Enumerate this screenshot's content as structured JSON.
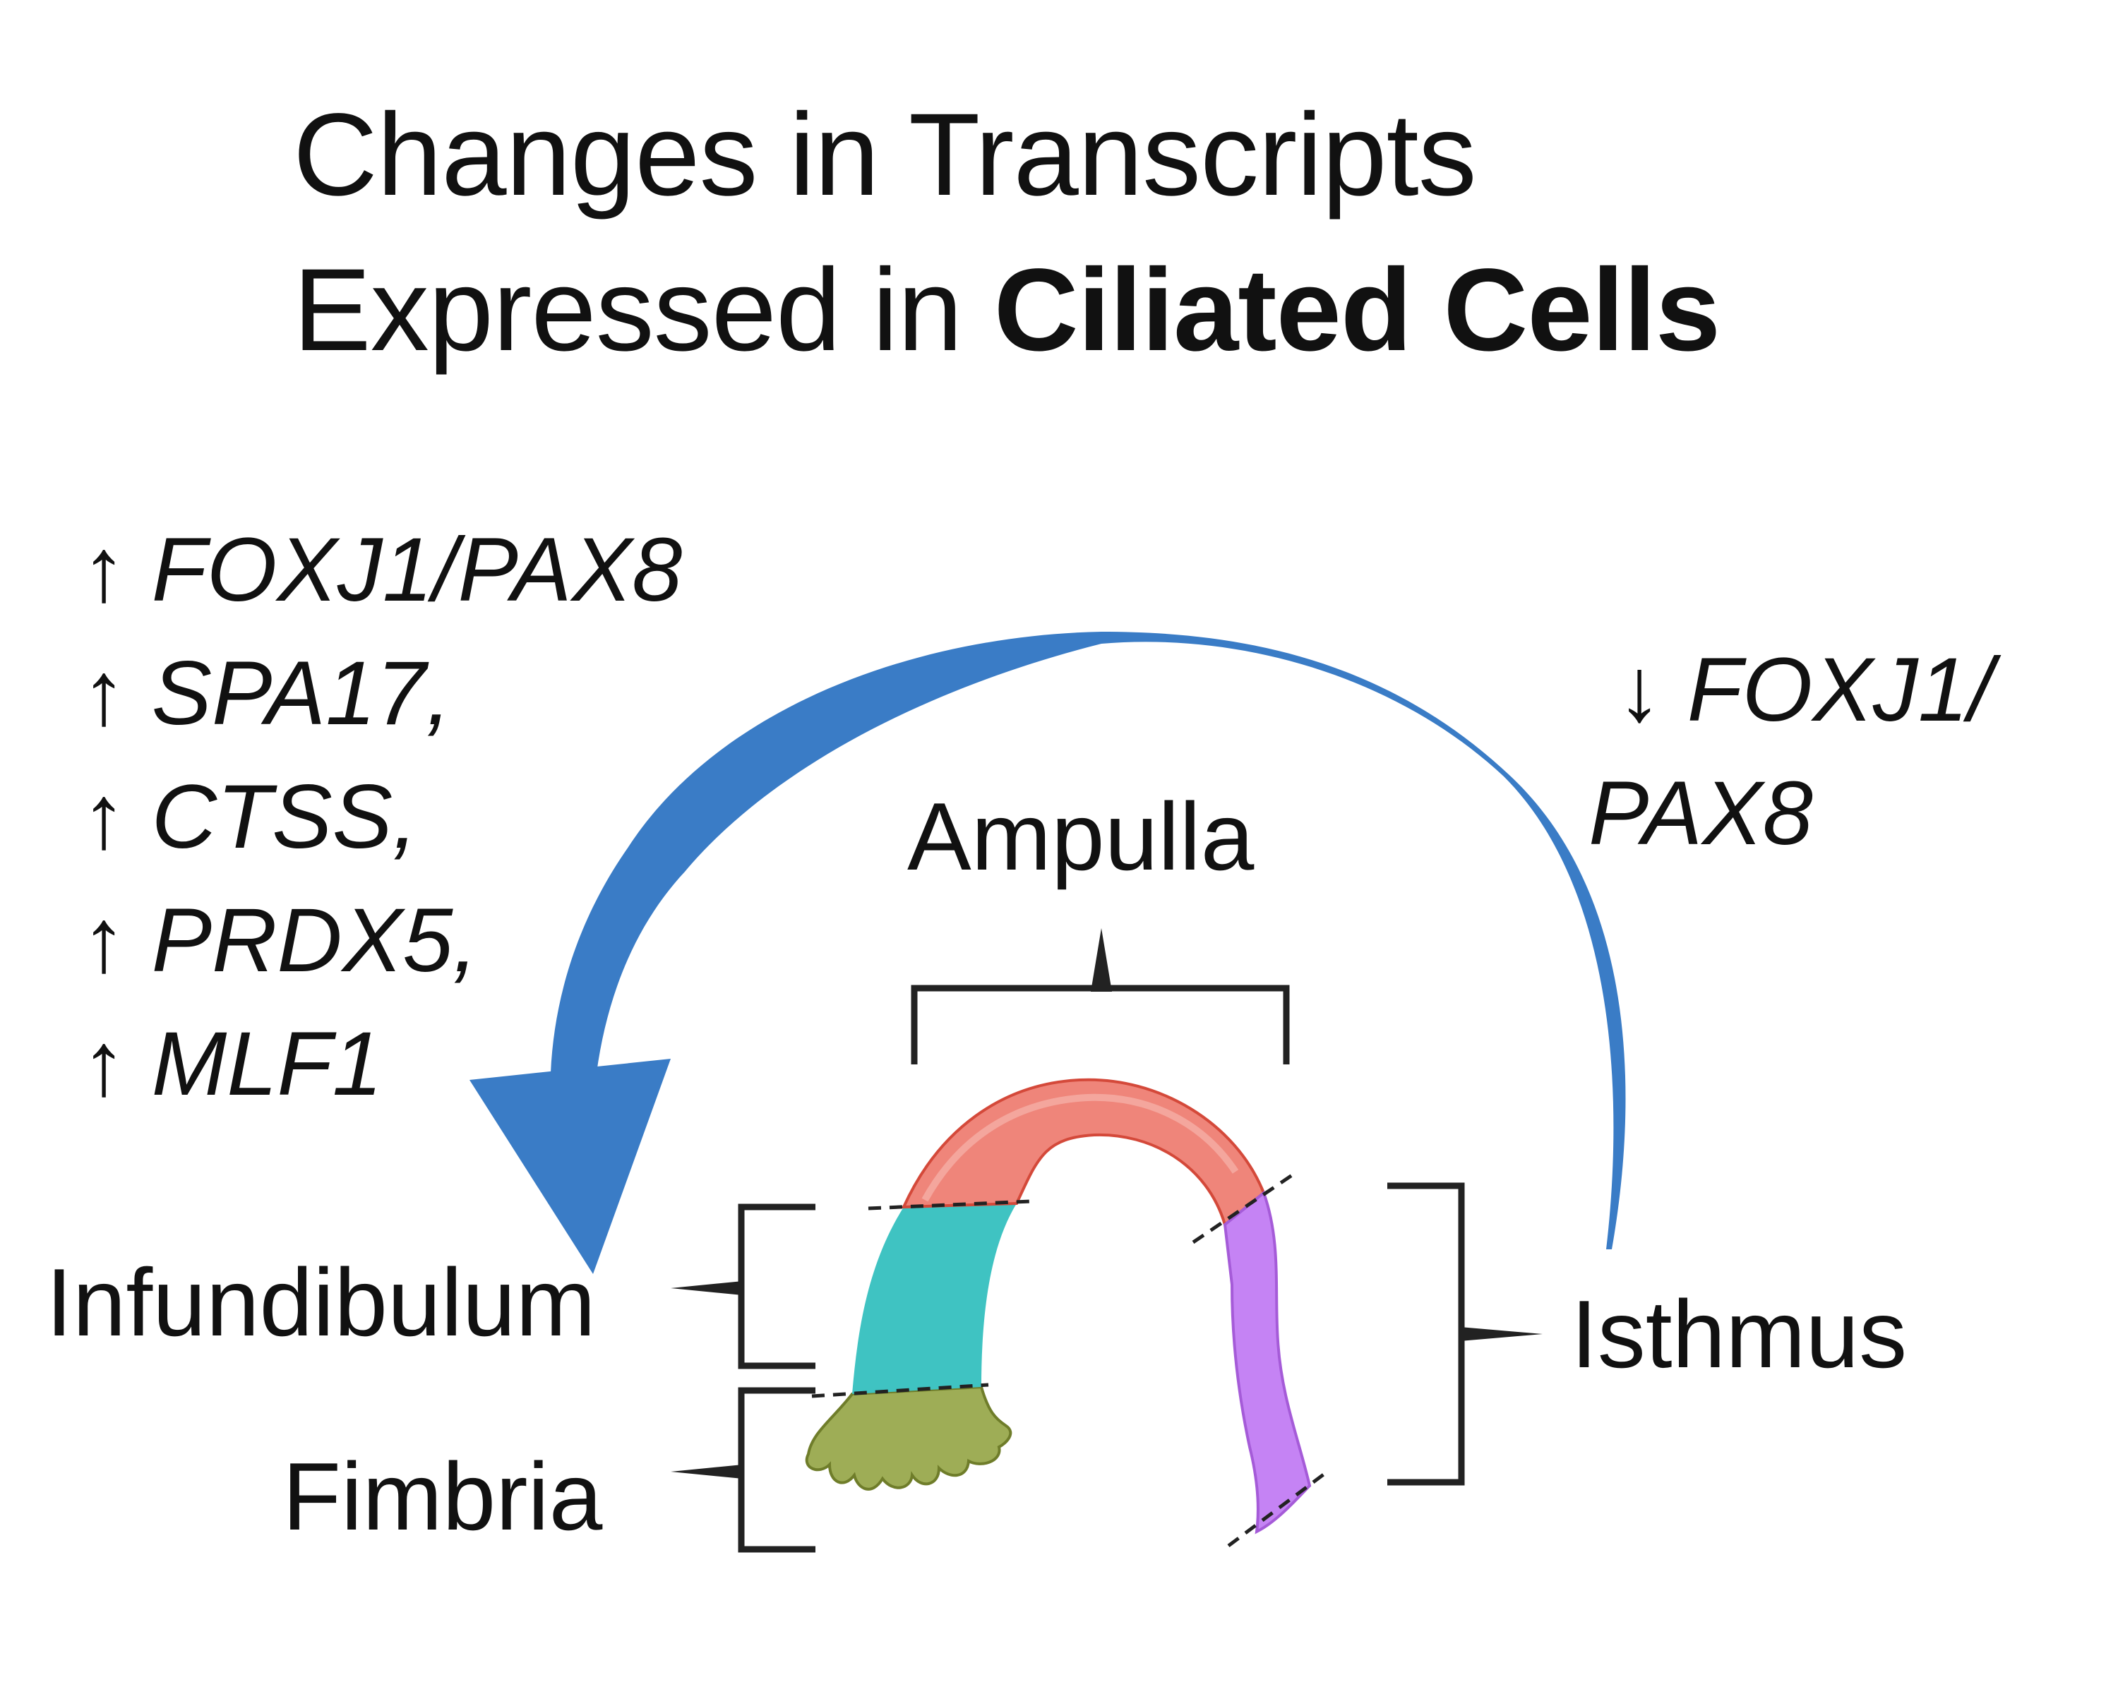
{
  "title": {
    "line1": "Changes in Transcripts",
    "line2_prefix": "Expressed in ",
    "line2_bold": "Ciliated Cells"
  },
  "left_genes": [
    {
      "arrow": "↑",
      "gene": "FOXJ1/PAX8"
    },
    {
      "arrow": "↑",
      "gene": "SPA17,"
    },
    {
      "arrow": "↑",
      "gene": "CTSS,"
    },
    {
      "arrow": "↑",
      "gene": "PRDX5,"
    },
    {
      "arrow": "↑",
      "gene": "MLF1"
    }
  ],
  "right_genes": {
    "arrow": "↓",
    "line1": "FOXJ1/",
    "line2": "PAX8"
  },
  "regions": {
    "ampulla": "Ampulla",
    "infundibulum": "Infundibulum",
    "fimbria": "Fimbria",
    "isthmus": "Isthmus"
  },
  "colors": {
    "arrow": "#3a7cc6",
    "ampulla": "#ef857a",
    "infundibulum": "#3fc3c2",
    "fimbria": "#9ead56",
    "isthmus": "#c583f4",
    "bracket": "#222222"
  }
}
